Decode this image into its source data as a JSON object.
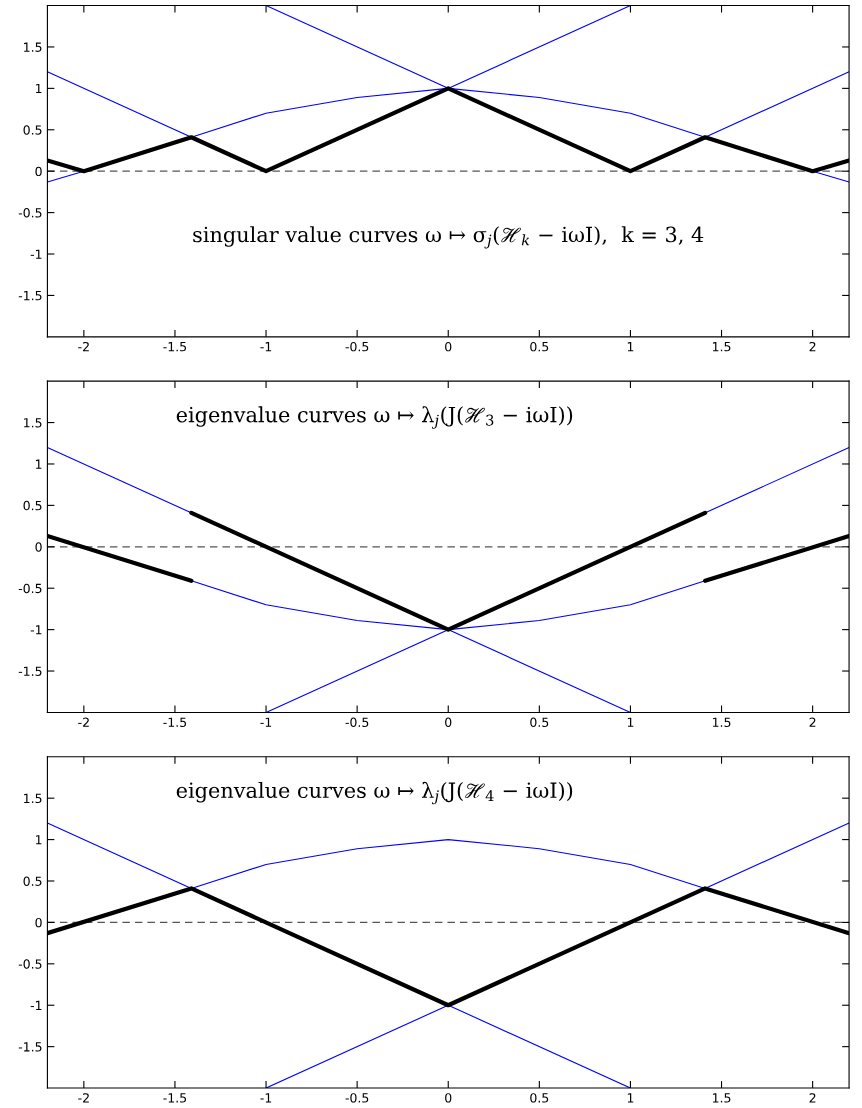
{
  "chart_data": [
    {
      "type": "line",
      "annotations": [
        "singular value curves ω ↦ σ$_{j}$(ℋ$_{k}$ − iωI),  k = 3, 4"
      ],
      "xlim": [
        -2.2,
        2.2
      ],
      "ylim": [
        -2,
        2
      ],
      "xticks": [
        -2,
        -1.5,
        -1,
        -0.5,
        0,
        0.5,
        1,
        1.5,
        2
      ],
      "yticks": [
        -1.5,
        -1,
        -0.5,
        0,
        0.5,
        1,
        1.5
      ],
      "ref_lines": [
        {
          "axis": "y",
          "value": 0,
          "color": "#555555",
          "line_style": "dashed"
        }
      ],
      "series": [
        {
          "color": "#0000ff",
          "x": [
            -2.2,
            -1,
            1
          ],
          "values": [
            1.2,
            0,
            2
          ]
        },
        {
          "color": "#0000ff",
          "x": [
            -1,
            1,
            2.2
          ],
          "values": [
            2,
            0,
            1.2
          ]
        },
        {
          "color": "#0000ff",
          "x": [
            -2.2,
            -2,
            -1.41,
            -1,
            -0.5,
            0,
            0.5,
            1,
            1.41,
            2,
            2.2
          ],
          "values": [
            -0.13,
            0,
            0.41,
            0.7,
            0.89,
            1,
            0.89,
            0.7,
            0.41,
            0,
            -0.13
          ]
        },
        {
          "color": "#000000",
          "x": [
            -2.2,
            -2,
            -1.41,
            -1,
            0,
            1,
            1.41,
            2,
            2.2
          ],
          "values": [
            0.13,
            0,
            0.41,
            0,
            1,
            0,
            0.41,
            0,
            0.13
          ]
        }
      ]
    },
    {
      "type": "line",
      "annotations": [
        "eigenvalue curves ω ↦ λ$_{j}$(J(ℋ$_{3}$ − iωI))"
      ],
      "xlim": [
        -2.2,
        2.2
      ],
      "ylim": [
        -2,
        2
      ],
      "xticks": [
        -2,
        -1.5,
        -1,
        -0.5,
        0,
        0.5,
        1,
        1.5,
        2
      ],
      "yticks": [
        -1.5,
        -1,
        -0.5,
        0,
        0.5,
        1,
        1.5
      ],
      "ref_lines": [
        {
          "axis": "y",
          "value": 0,
          "color": "#555555",
          "line_style": "dashed"
        }
      ],
      "series": [
        {
          "color": "#0000ff",
          "x": [
            -2.2,
            1
          ],
          "values": [
            1.2,
            -2
          ]
        },
        {
          "color": "#0000ff",
          "x": [
            -1,
            2.2
          ],
          "values": [
            -2,
            1.2
          ]
        },
        {
          "color": "#0000ff",
          "x": [
            -2,
            -1.41,
            -1,
            -0.5,
            0,
            0.5,
            1,
            1.41,
            2
          ],
          "values": [
            0,
            -0.41,
            -0.7,
            -0.89,
            -1,
            -0.89,
            -0.7,
            -0.41,
            0
          ]
        },
        {
          "color": "#000000",
          "x": [
            -2.2,
            -1.41
          ],
          "values": [
            0.13,
            -0.41
          ]
        },
        {
          "color": "#000000",
          "x": [
            -1.41,
            0,
            1.41
          ],
          "values": [
            0.41,
            -1,
            0.41
          ]
        },
        {
          "color": "#000000",
          "x": [
            1.41,
            2.2
          ],
          "values": [
            -0.41,
            0.13
          ]
        }
      ]
    },
    {
      "type": "line",
      "annotations": [
        "eigenvalue curves ω ↦ λ$_{j}$(J(ℋ$_{4}$ − iωI))"
      ],
      "xlim": [
        -2.2,
        2.2
      ],
      "ylim": [
        -2,
        2
      ],
      "xticks": [
        -2,
        -1.5,
        -1,
        -0.5,
        0,
        0.5,
        1,
        1.5,
        2
      ],
      "yticks": [
        -1.5,
        -1,
        -0.5,
        0,
        0.5,
        1,
        1.5
      ],
      "ref_lines": [
        {
          "axis": "y",
          "value": 0,
          "color": "#555555",
          "line_style": "dashed"
        }
      ],
      "series": [
        {
          "color": "#0000ff",
          "x": [
            -2.2,
            1
          ],
          "values": [
            1.2,
            -2
          ]
        },
        {
          "color": "#0000ff",
          "x": [
            -1,
            2.2
          ],
          "values": [
            -2,
            1.2
          ]
        },
        {
          "color": "#0000ff",
          "x": [
            -2,
            -1.41,
            -1,
            -0.5,
            0,
            0.5,
            1,
            1.41,
            2
          ],
          "values": [
            0,
            0.41,
            0.7,
            0.89,
            1,
            0.89,
            0.7,
            0.41,
            0
          ]
        },
        {
          "color": "#000000",
          "x": [
            -2.2,
            -1.41,
            0,
            1.41,
            2.2
          ],
          "values": [
            -0.13,
            0.41,
            -1,
            0.41,
            -0.13
          ]
        }
      ]
    }
  ]
}
